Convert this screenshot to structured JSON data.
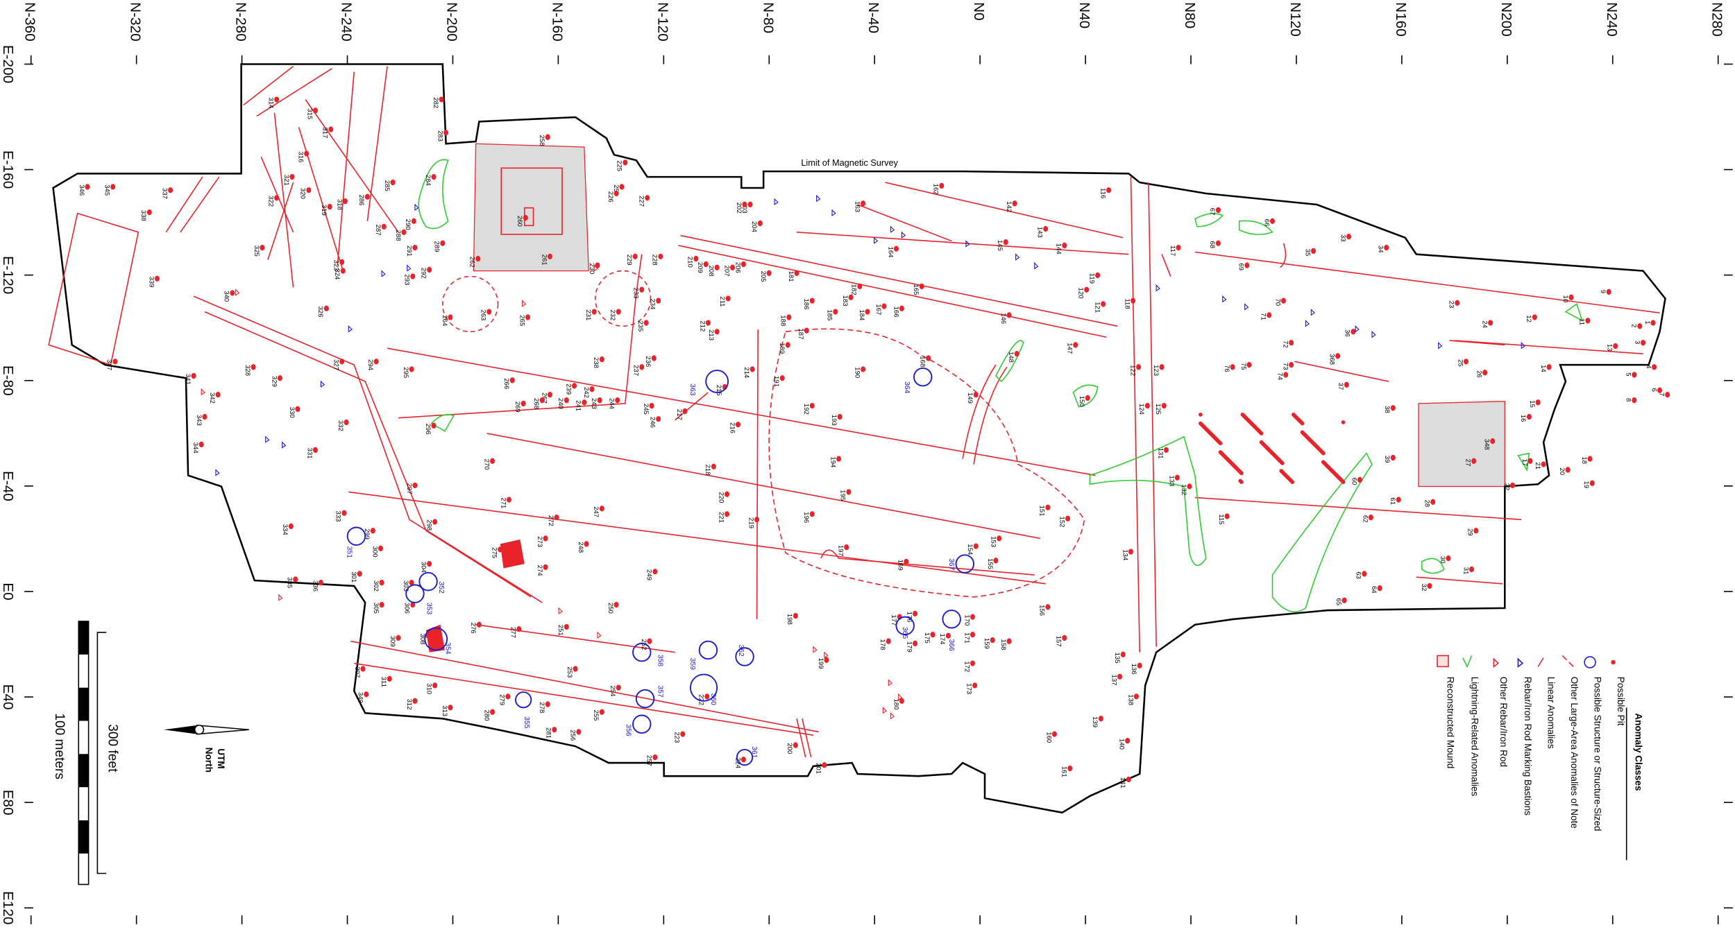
{
  "x_axis_labels": [
    "N-360",
    "N-320",
    "N-280",
    "N-240",
    "N-200",
    "N-160",
    "N-120",
    "N-80",
    "N-40",
    "N0",
    "N40",
    "N80",
    "N120",
    "N160",
    "N200",
    "N240",
    "N280"
  ],
  "y_axis_labels": [
    "E-200",
    "E-160",
    "E-120",
    "E-80",
    "E-40",
    "E0",
    "E40",
    "E80",
    "E120"
  ],
  "survey_label": "Limit of Magnetic Survey",
  "legend": {
    "title": "Anomaly Classes",
    "items": [
      "Possible Pit",
      "Possible Structure or Structure-Sized",
      "Other Large-Area Anomalies of Note",
      "Linear Anomalies",
      "Rebar/Iron Rod Marking Bastions",
      "Other Rebar/Iron Rod",
      "Lightning-Related Anomalies",
      "Reconstructed Mound"
    ]
  },
  "scale": {
    "feet": "300 feet",
    "meters": "100 meters"
  },
  "north": {
    "line1": "UTM",
    "line2": "North"
  },
  "anomalies": [
    "282",
    "283",
    "314",
    "315",
    "317",
    "316",
    "321",
    "320",
    "322",
    "318",
    "319",
    "286",
    "287",
    "285",
    "284",
    "288",
    "290",
    "289",
    "291",
    "292",
    "293",
    "325",
    "323",
    "324",
    "326",
    "327",
    "294",
    "295",
    "328",
    "329",
    "330",
    "331",
    "332",
    "296",
    "297",
    "298",
    "299",
    "300",
    "301",
    "302",
    "303",
    "304",
    "305",
    "306",
    "308",
    "309",
    "307",
    "311",
    "312",
    "310",
    "313",
    "349",
    "333",
    "334",
    "335",
    "336",
    "341",
    "342",
    "343",
    "344",
    "340",
    "339",
    "338",
    "337",
    "345",
    "346",
    "347",
    "258",
    "259",
    "260",
    "261",
    "262",
    "263",
    "264",
    "265",
    "225",
    "226",
    "227",
    "228",
    "229",
    "230",
    "231",
    "232",
    "233",
    "234",
    "235",
    "236",
    "237",
    "238",
    "244",
    "245",
    "246",
    "217",
    "216",
    "214",
    "213",
    "212",
    "211",
    "210",
    "209",
    "208",
    "207",
    "206",
    "205",
    "204",
    "203",
    "202",
    "181",
    "186",
    "188",
    "187",
    "189",
    "191",
    "190",
    "192",
    "193",
    "194",
    "195",
    "196",
    "197",
    "198",
    "199",
    "200",
    "201",
    "218",
    "219",
    "220",
    "221",
    "222",
    "223",
    "224",
    "247",
    "248",
    "249",
    "250",
    "251",
    "252",
    "253",
    "254",
    "255",
    "256",
    "257",
    "266",
    "267",
    "268",
    "269",
    "270",
    "271",
    "272",
    "273",
    "274",
    "275",
    "276",
    "277",
    "278",
    "279",
    "280",
    "281",
    "239",
    "240",
    "241",
    "242",
    "243",
    "215",
    "142",
    "143",
    "144",
    "145",
    "146",
    "147",
    "148",
    "149",
    "150",
    "151",
    "152",
    "153",
    "154",
    "155",
    "156",
    "157",
    "158",
    "159",
    "160",
    "161",
    "162",
    "163",
    "164",
    "165",
    "166",
    "167",
    "168",
    "169",
    "170",
    "171",
    "172",
    "173",
    "174",
    "175",
    "176",
    "177",
    "178",
    "179",
    "180",
    "182",
    "183",
    "184",
    "185",
    "116",
    "117",
    "118",
    "119",
    "120",
    "121",
    "122",
    "123",
    "124",
    "125",
    "131",
    "132",
    "133",
    "134",
    "135",
    "136",
    "137",
    "138",
    "139",
    "140",
    "141",
    "115",
    "35",
    "33",
    "34",
    "36",
    "37",
    "38",
    "39",
    "60",
    "61",
    "62",
    "63",
    "64",
    "65",
    "66",
    "67",
    "68",
    "69",
    "70",
    "71",
    "72",
    "73",
    "74",
    "75",
    "76",
    "368",
    "23",
    "24",
    "25",
    "26",
    "27",
    "28",
    "29",
    "30",
    "31",
    "32",
    "348",
    "1",
    "2",
    "3",
    "4",
    "5",
    "6",
    "7",
    "8",
    "9",
    "10",
    "11",
    "12",
    "13",
    "14",
    "15",
    "16",
    "17",
    "18",
    "19",
    "20",
    "21",
    "22"
  ],
  "structures": [
    "363",
    "364",
    "367",
    "351",
    "352",
    "353",
    "354",
    "355",
    "356",
    "357",
    "358",
    "359",
    "360",
    "361",
    "362",
    "365",
    "366"
  ]
}
